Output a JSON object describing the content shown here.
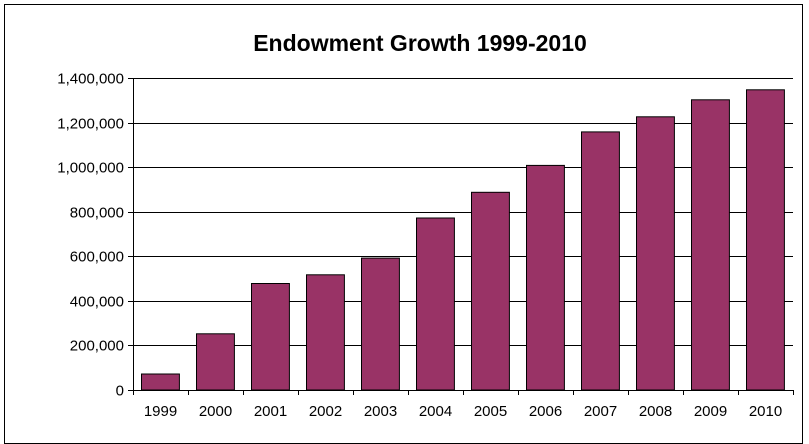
{
  "chart_data": {
    "type": "bar",
    "title": "Endowment Growth 1999-2010",
    "xlabel": "",
    "ylabel": "",
    "categories": [
      "1999",
      "2000",
      "2001",
      "2002",
      "2003",
      "2004",
      "2005",
      "2006",
      "2007",
      "2008",
      "2009",
      "2010"
    ],
    "values": [
      72000,
      252000,
      478000,
      517000,
      592000,
      772000,
      887000,
      1008000,
      1158000,
      1226000,
      1302000,
      1347000
    ],
    "ylim": [
      0,
      1400000
    ],
    "yticks": [
      0,
      200000,
      400000,
      600000,
      800000,
      1000000,
      1200000,
      1400000
    ],
    "ytick_labels": [
      "0",
      "200,000",
      "400,000",
      "600,000",
      "800,000",
      "1,000,000",
      "1,200,000",
      "1,400,000"
    ],
    "grid": true,
    "legend": "none",
    "bar_color": "#993366"
  }
}
